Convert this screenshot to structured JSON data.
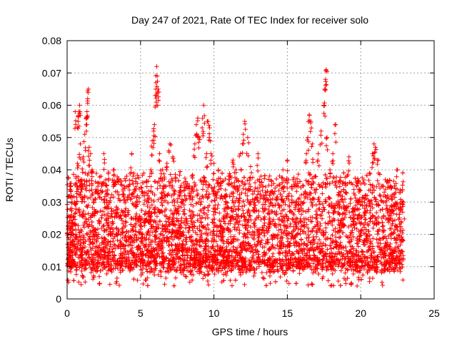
{
  "chart_data": {
    "type": "scatter",
    "title": "Day 247 of 2021, Rate Of TEC Index for receiver solo",
    "xlabel": "GPS time / hours",
    "ylabel": "ROTI / TECUs",
    "xlim": [
      0,
      25
    ],
    "ylim": [
      0,
      0.08
    ],
    "x_ticks": [
      0,
      5,
      10,
      15,
      20,
      25
    ],
    "x_tick_labels": [
      "0",
      "5",
      "10",
      "15",
      "20",
      "25"
    ],
    "y_ticks": [
      0,
      0.01,
      0.02,
      0.03,
      0.04,
      0.05,
      0.06,
      0.07,
      0.08
    ],
    "y_tick_labels": [
      "0",
      "0.01",
      "0.02",
      "0.03",
      "0.04",
      "0.05",
      "0.06",
      "0.07",
      "0.08"
    ],
    "grid": true,
    "marker": "plus",
    "color": "#ff0000",
    "data_extent_hours": [
      0,
      22.9
    ],
    "series": [
      {
        "points": [
          [
            0.1,
            0.015
          ],
          [
            0.2,
            0.022
          ],
          [
            0.25,
            0.035
          ],
          [
            0.3,
            0.026
          ],
          [
            0.35,
            0.018
          ],
          [
            0.4,
            0.012
          ],
          [
            0.5,
            0.03
          ],
          [
            0.55,
            0.058
          ],
          [
            0.6,
            0.02
          ],
          [
            0.7,
            0.042
          ],
          [
            0.75,
            0.055
          ],
          [
            0.8,
            0.058
          ],
          [
            0.85,
            0.06
          ],
          [
            0.9,
            0.048
          ],
          [
            1.0,
            0.037
          ],
          [
            1.1,
            0.044
          ],
          [
            1.2,
            0.051
          ],
          [
            1.3,
            0.056
          ],
          [
            1.35,
            0.058
          ],
          [
            1.4,
            0.062
          ],
          [
            1.45,
            0.065
          ],
          [
            1.5,
            0.047
          ],
          [
            1.6,
            0.045
          ],
          [
            1.7,
            0.04
          ],
          [
            1.9,
            0.031
          ],
          [
            2.1,
            0.036
          ],
          [
            2.3,
            0.038
          ],
          [
            2.5,
            0.045
          ],
          [
            2.7,
            0.03
          ],
          [
            3.0,
            0.028
          ],
          [
            3.2,
            0.04
          ],
          [
            3.5,
            0.037
          ],
          [
            3.8,
            0.034
          ],
          [
            4.0,
            0.028
          ],
          [
            4.2,
            0.035
          ],
          [
            4.4,
            0.045
          ],
          [
            4.7,
            0.03
          ],
          [
            5.0,
            0.025
          ],
          [
            5.3,
            0.033
          ],
          [
            5.5,
            0.032
          ],
          [
            5.7,
            0.04
          ],
          [
            5.8,
            0.049
          ],
          [
            5.9,
            0.052
          ],
          [
            5.95,
            0.054
          ],
          [
            6.0,
            0.063
          ],
          [
            6.05,
            0.067
          ],
          [
            6.1,
            0.072
          ],
          [
            6.15,
            0.064
          ],
          [
            6.2,
            0.065
          ],
          [
            6.3,
            0.045
          ],
          [
            6.5,
            0.04
          ],
          [
            6.8,
            0.042
          ],
          [
            7.0,
            0.048
          ],
          [
            7.2,
            0.044
          ],
          [
            7.5,
            0.03
          ],
          [
            7.8,
            0.025
          ],
          [
            8.0,
            0.032
          ],
          [
            8.3,
            0.035
          ],
          [
            8.5,
            0.038
          ],
          [
            8.7,
            0.048
          ],
          [
            8.8,
            0.054
          ],
          [
            8.9,
            0.056
          ],
          [
            9.0,
            0.05
          ],
          [
            9.2,
            0.053
          ],
          [
            9.3,
            0.06
          ],
          [
            9.5,
            0.045
          ],
          [
            9.6,
            0.055
          ],
          [
            9.7,
            0.053
          ],
          [
            9.8,
            0.045
          ],
          [
            10.0,
            0.042
          ],
          [
            10.3,
            0.04
          ],
          [
            10.5,
            0.036
          ],
          [
            10.8,
            0.032
          ],
          [
            11.0,
            0.038
          ],
          [
            11.3,
            0.043
          ],
          [
            11.5,
            0.04
          ],
          [
            11.8,
            0.045
          ],
          [
            12.0,
            0.051
          ],
          [
            12.1,
            0.055
          ],
          [
            12.3,
            0.05
          ],
          [
            12.5,
            0.041
          ],
          [
            12.8,
            0.036
          ],
          [
            13.0,
            0.045
          ],
          [
            13.2,
            0.038
          ],
          [
            13.5,
            0.03
          ],
          [
            13.8,
            0.025
          ],
          [
            14.0,
            0.031
          ],
          [
            14.3,
            0.035
          ],
          [
            14.7,
            0.04
          ],
          [
            15.0,
            0.043
          ],
          [
            15.3,
            0.03
          ],
          [
            15.6,
            0.025
          ],
          [
            15.9,
            0.029
          ],
          [
            16.1,
            0.035
          ],
          [
            16.3,
            0.045
          ],
          [
            16.4,
            0.05
          ],
          [
            16.5,
            0.057
          ],
          [
            16.6,
            0.055
          ],
          [
            16.7,
            0.048
          ],
          [
            16.9,
            0.038
          ],
          [
            17.1,
            0.045
          ],
          [
            17.3,
            0.052
          ],
          [
            17.5,
            0.06
          ],
          [
            17.55,
            0.065
          ],
          [
            17.6,
            0.068
          ],
          [
            17.65,
            0.071
          ],
          [
            17.7,
            0.05
          ],
          [
            17.9,
            0.04
          ],
          [
            18.1,
            0.045
          ],
          [
            18.3,
            0.054
          ],
          [
            18.5,
            0.036
          ],
          [
            18.8,
            0.03
          ],
          [
            19.0,
            0.033
          ],
          [
            19.2,
            0.044
          ],
          [
            19.5,
            0.028
          ],
          [
            19.8,
            0.03
          ],
          [
            20.0,
            0.025
          ],
          [
            20.3,
            0.032
          ],
          [
            20.6,
            0.039
          ],
          [
            20.8,
            0.045
          ],
          [
            20.9,
            0.048
          ],
          [
            21.0,
            0.047
          ],
          [
            21.2,
            0.043
          ],
          [
            21.5,
            0.035
          ],
          [
            21.8,
            0.028
          ],
          [
            22.0,
            0.027
          ],
          [
            22.3,
            0.035
          ],
          [
            22.5,
            0.04
          ],
          [
            22.7,
            0.033
          ],
          [
            22.9,
            0.03
          ]
        ]
      }
    ],
    "notes": "Dense cloud of red plus markers from 0 to ~22.9 hours; the bulk of points lies between about 0.007 and 0.03 TECU, with spikes reaching ~0.072 near 6 h and ~0.071 near 17.6 h."
  }
}
